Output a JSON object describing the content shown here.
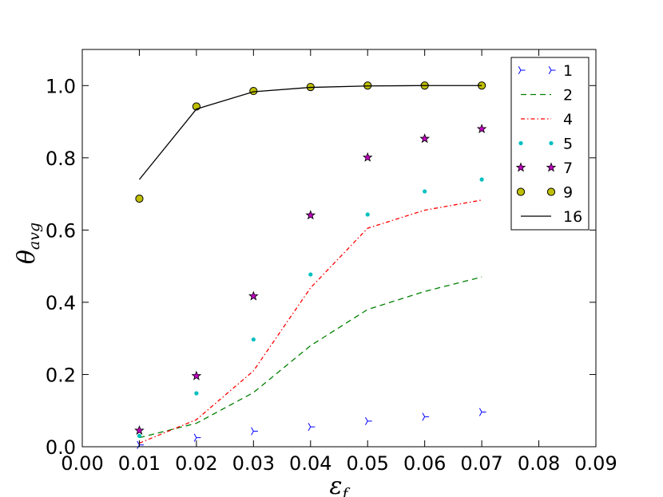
{
  "chart_data": {
    "type": "line",
    "xlabel": "ε",
    "xlabel_sub": "f",
    "ylabel": "θ",
    "ylabel_sub": "avg",
    "xlim": [
      0.0,
      0.09
    ],
    "ylim": [
      0.0,
      1.1
    ],
    "xticks": [
      0.0,
      0.01,
      0.02,
      0.03,
      0.04,
      0.05,
      0.06,
      0.07,
      0.08,
      0.09
    ],
    "xtick_labels": [
      "0.00",
      "0.01",
      "0.02",
      "0.03",
      "0.04",
      "0.05",
      "0.06",
      "0.07",
      "0.08",
      "0.09"
    ],
    "yticks": [
      0.0,
      0.2,
      0.4,
      0.6,
      0.8,
      1.0
    ],
    "ytick_labels": [
      "0.0",
      "0.2",
      "0.4",
      "0.6",
      "0.8",
      "1.0"
    ],
    "grid": false,
    "legend_position": "top-right",
    "x": [
      0.01,
      0.02,
      0.03,
      0.04,
      0.05,
      0.06,
      0.07
    ],
    "series": [
      {
        "name": "1",
        "style": "tri_right",
        "color": "#0000ff",
        "values": [
          0.005,
          0.025,
          0.043,
          0.055,
          0.071,
          0.083,
          0.096
        ]
      },
      {
        "name": "2",
        "style": "dashed",
        "color": "#008000",
        "values": [
          0.025,
          0.065,
          0.15,
          0.28,
          0.38,
          0.43,
          0.47
        ]
      },
      {
        "name": "4",
        "style": "dashdot",
        "color": "#ff0000",
        "values": [
          0.01,
          0.075,
          0.21,
          0.44,
          0.605,
          0.655,
          0.683
        ]
      },
      {
        "name": "5",
        "style": "dot",
        "color": "#00bfbf",
        "values": [
          0.03,
          0.148,
          0.297,
          0.477,
          0.643,
          0.707,
          0.74
        ]
      },
      {
        "name": "7",
        "style": "star",
        "color": "#bf00bf",
        "values": [
          0.045,
          0.196,
          0.417,
          0.641,
          0.801,
          0.853,
          0.88
        ]
      },
      {
        "name": "9",
        "style": "circle",
        "color": "#bfbf00",
        "values": [
          0.687,
          0.942,
          0.985,
          0.996,
          1.0,
          1.0,
          1.0
        ]
      },
      {
        "name": "16",
        "style": "solid",
        "color": "#000000",
        "values": [
          0.74,
          0.935,
          0.983,
          0.995,
          0.999,
          1.0,
          1.0
        ]
      }
    ]
  }
}
